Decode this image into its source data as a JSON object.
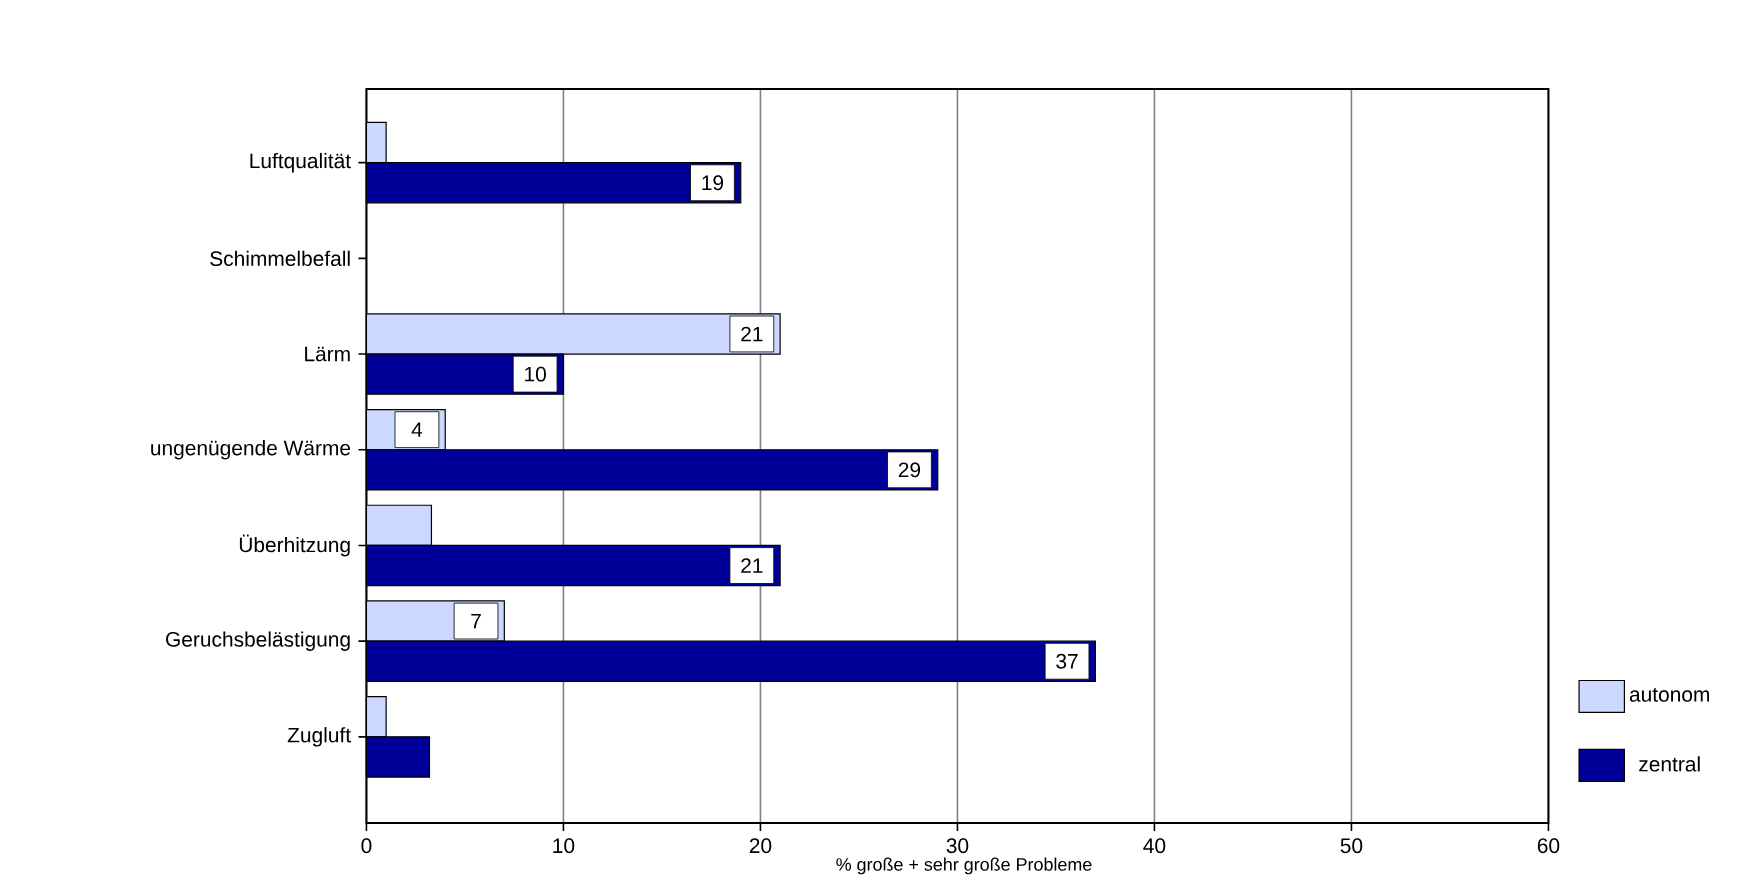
{
  "chart_data": {
    "type": "bar",
    "orientation": "horizontal",
    "xlabel": "% große + sehr große Probleme",
    "categories": [
      "Luftqualität",
      "Schimmelbefall",
      "Lärm",
      "ungenügende Wärme",
      "Überhitzung",
      "Geruchsbelästigung",
      "Zugluft"
    ],
    "series": [
      {
        "name": "autonom",
        "color": "#ccd8ff",
        "values": [
          1,
          null,
          21,
          4,
          3.3,
          7,
          1
        ],
        "value_labels": [
          null,
          null,
          "21",
          "4",
          null,
          "7",
          null
        ]
      },
      {
        "name": "zentral",
        "color": "#000099",
        "values": [
          19,
          null,
          10,
          29,
          21,
          37,
          3.2
        ],
        "value_labels": [
          "19",
          null,
          "10",
          "29",
          "21",
          "37",
          null
        ]
      }
    ],
    "xlim": [
      0,
      60
    ],
    "xticks": [
      0,
      10,
      20,
      30,
      40,
      50,
      60
    ],
    "grid": "x",
    "legend": "right"
  }
}
